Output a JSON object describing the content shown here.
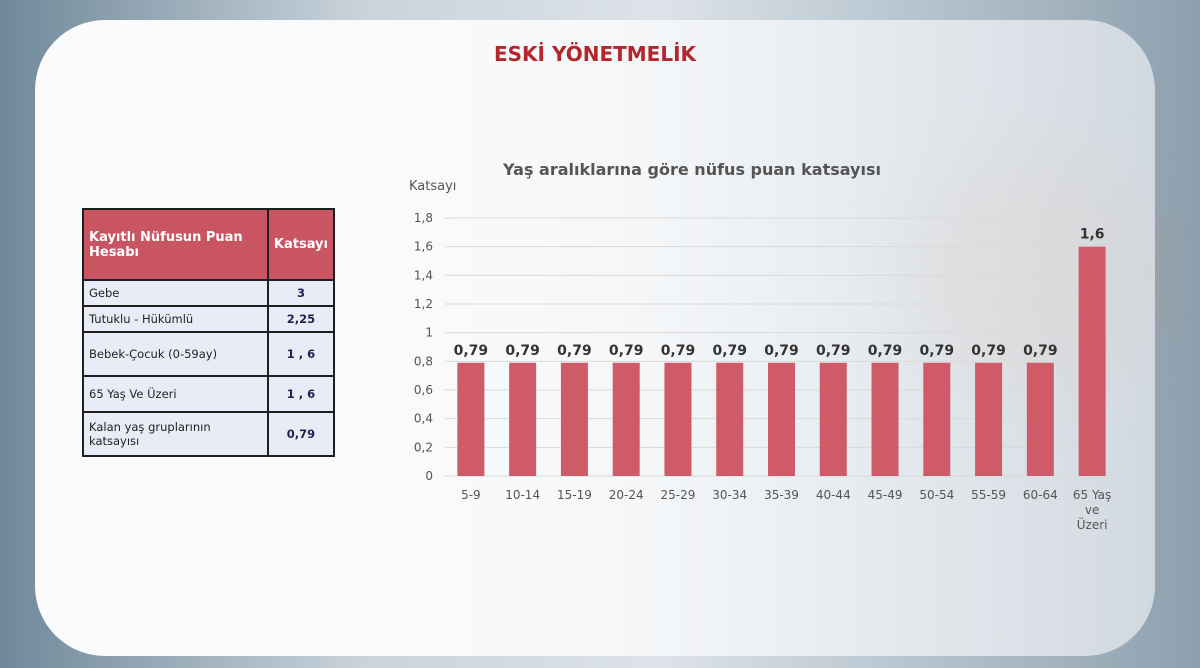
{
  "slide_title": "ESKİ YÖNETMELİK",
  "table": {
    "headers": [
      "Kayıtlı Nüfusun Puan Hesabı",
      "Katsayı"
    ],
    "rows": [
      {
        "label": "Gebe",
        "value": "3"
      },
      {
        "label": "Tutuklu - Hükümlü",
        "value": "2,25"
      },
      {
        "label": "Bebek-Çocuk (0-59ay)",
        "value": "1 , 6"
      },
      {
        "label": "65 Yaş Ve Üzeri",
        "value": "1 , 6"
      },
      {
        "label": "Kalan yaş gruplarının katsayısı",
        "value": "0,79"
      }
    ]
  },
  "chart_data": {
    "type": "bar",
    "title": "Yaş aralıklarına göre nüfus puan katsayısı",
    "ylabel": "Katsayı",
    "xlabel": "",
    "ylim": [
      0,
      1.8
    ],
    "yticks": [
      "0",
      "0,2",
      "0,4",
      "0,6",
      "0,8",
      "1",
      "1,2",
      "1,4",
      "1,6",
      "1,8"
    ],
    "grid": true,
    "categories": [
      "5-9",
      "10-14",
      "15-19",
      "20-24",
      "25-29",
      "30-34",
      "35-39",
      "40-44",
      "45-49",
      "50-54",
      "55-59",
      "60-64",
      "65 Yaş ve Üzeri"
    ],
    "values": [
      0.79,
      0.79,
      0.79,
      0.79,
      0.79,
      0.79,
      0.79,
      0.79,
      0.79,
      0.79,
      0.79,
      0.79,
      1.6
    ],
    "data_labels": [
      "0,79",
      "0,79",
      "0,79",
      "0,79",
      "0,79",
      "0,79",
      "0,79",
      "0,79",
      "0,79",
      "0,79",
      "0,79",
      "0,79",
      "1,6"
    ],
    "bar_color": "#cf5a68"
  }
}
